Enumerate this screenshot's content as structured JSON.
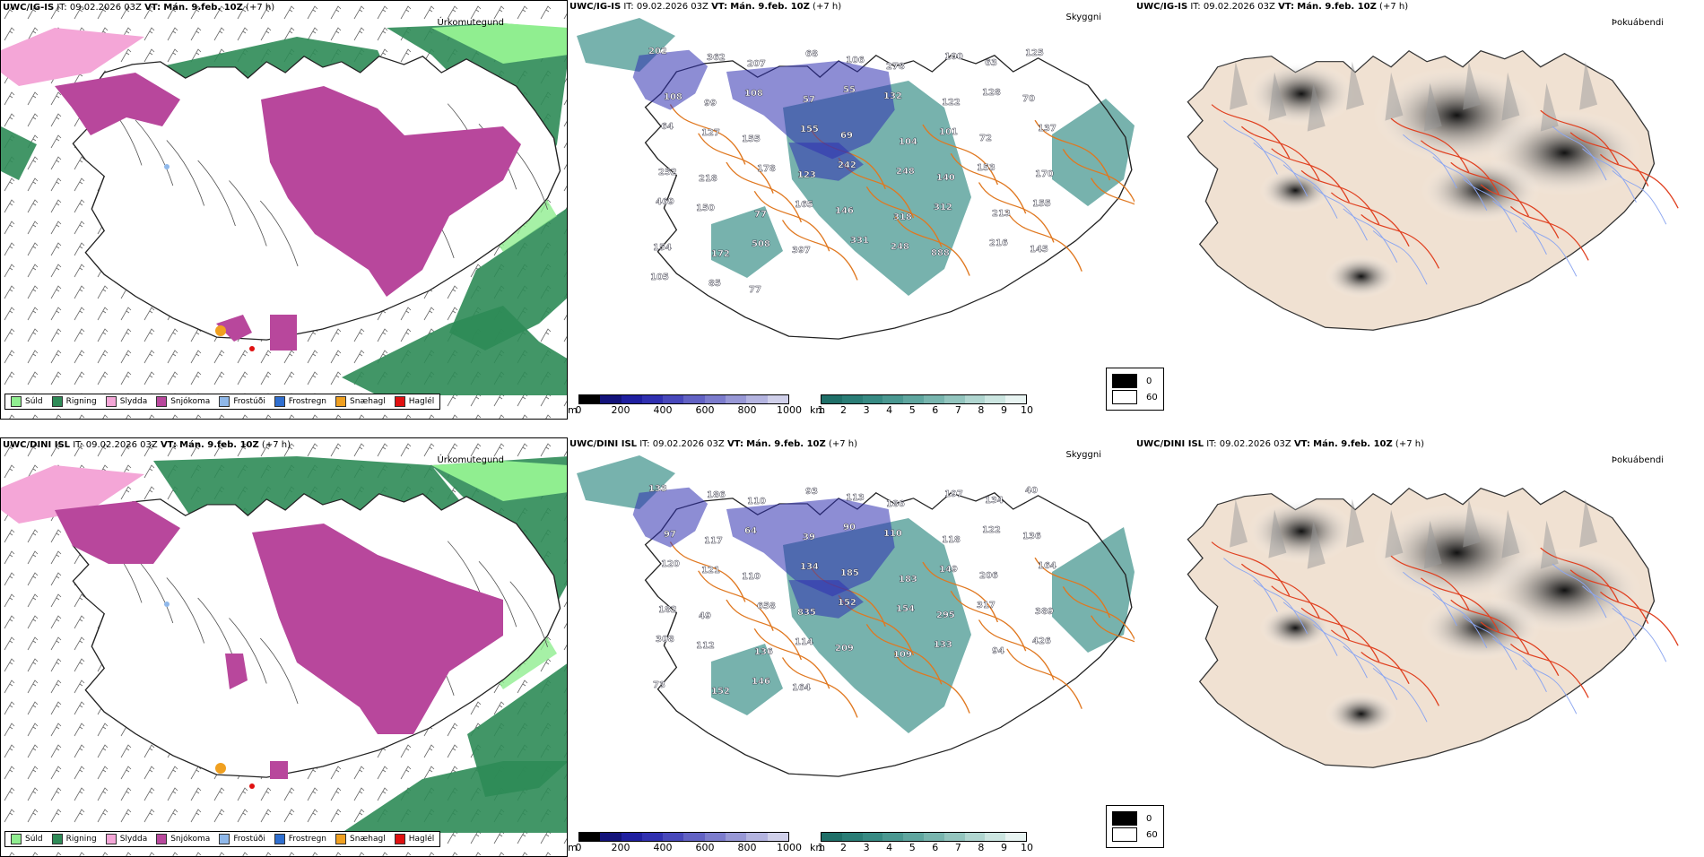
{
  "rows": [
    {
      "model": "UWC/IG-IS",
      "it_label": "IT:",
      "it_value": "09.02.2026 03Z",
      "vt_label": "VT:",
      "vt_value": "Mán. 9.feb. 10Z",
      "lead": "(+7 h)"
    },
    {
      "model": "UWC/DINI ISL",
      "it_label": "IT:",
      "it_value": "09.02.2026 03Z",
      "vt_label": "VT:",
      "vt_value": "Mán. 9.feb. 10Z",
      "lead": "(+7 h)"
    }
  ],
  "panel_titles": {
    "precip_type": "Úrkomutegund",
    "cloud_ceiling": "Skyggni",
    "fog_probability": "Þokuábendi"
  },
  "precip_legend": [
    {
      "label": "Súld",
      "color": "#90ee90"
    },
    {
      "label": "Rigning",
      "color": "#2e8b57"
    },
    {
      "label": "Slydda",
      "color": "#f4a6d7"
    },
    {
      "label": "Snjókoma",
      "color": "#b8479c"
    },
    {
      "label": "Frostúði",
      "color": "#8fb8ea"
    },
    {
      "label": "Frostregn",
      "color": "#2f6fd0"
    },
    {
      "label": "Snæhagl",
      "color": "#f0a020"
    },
    {
      "label": "Haglél",
      "color": "#e01010"
    }
  ],
  "ceiling_scale": {
    "unit": "m",
    "ticks": [
      "0",
      "200",
      "400",
      "600",
      "800",
      "1000"
    ],
    "colors": [
      "#000000",
      "#13137a",
      "#1f1fa0",
      "#3030b0",
      "#4848bb",
      "#6262c4",
      "#7c7ccd",
      "#9898d6",
      "#b4b4e0",
      "#d0d0ea"
    ]
  },
  "visibility_scale": {
    "unit": "km",
    "ticks": [
      "1",
      "2",
      "3",
      "4",
      "5",
      "6",
      "7",
      "8",
      "9",
      "10"
    ],
    "colors": [
      "#1f6f68",
      "#2a7d76",
      "#378a83",
      "#4a9891",
      "#5fa69f",
      "#78b5ae",
      "#93c5be",
      "#b0d6d0",
      "#cce6e1",
      "#e8f4f2"
    ]
  },
  "fog_legend": [
    {
      "label": "0",
      "color": "#000000"
    },
    {
      "label": "60",
      "color": "#ffffff"
    }
  ],
  "ceiling_labels_top": [
    "202",
    "362",
    "207",
    "68",
    "106",
    "278",
    "100",
    "63",
    "125",
    "108",
    "99",
    "108",
    "57",
    "55",
    "132",
    "122",
    "128",
    "70",
    "64",
    "127",
    "155",
    "155",
    "69",
    "104",
    "101",
    "72",
    "137",
    "252",
    "218",
    "178",
    "123",
    "242",
    "248",
    "140",
    "153",
    "170",
    "469",
    "150",
    "77",
    "165",
    "146",
    "318",
    "312",
    "213",
    "155",
    "154",
    "172",
    "508",
    "397",
    "331",
    "248",
    "888",
    "216",
    "145",
    "105",
    "85",
    "77"
  ],
  "ceiling_labels_bottom": [
    "133",
    "186",
    "110",
    "93",
    "113",
    "186",
    "197",
    "134",
    "40",
    "97",
    "117",
    "64",
    "39",
    "90",
    "110",
    "118",
    "122",
    "136",
    "120",
    "121",
    "110",
    "134",
    "185",
    "183",
    "149",
    "206",
    "164",
    "182",
    "49",
    "658",
    "835",
    "152",
    "154",
    "295",
    "317",
    "389",
    "308",
    "112",
    "136",
    "114",
    "209",
    "109",
    "133",
    "94",
    "426",
    "73",
    "152",
    "146",
    "164"
  ]
}
